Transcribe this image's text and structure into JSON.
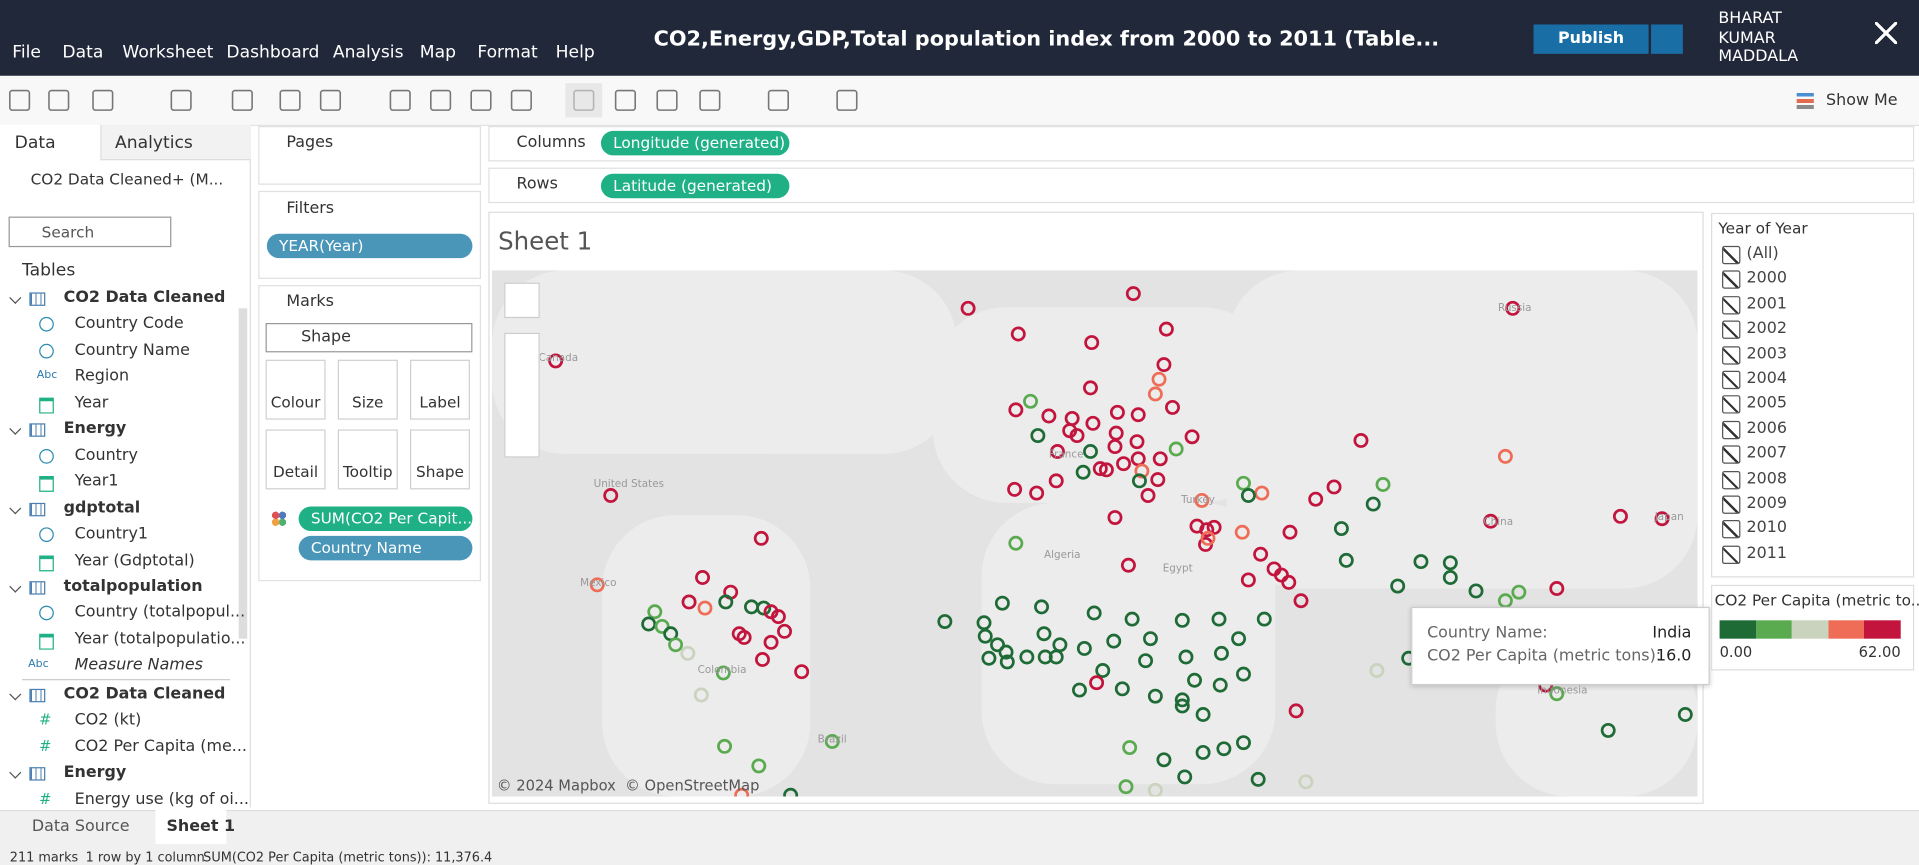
{
  "menu": [
    "File",
    "Data",
    "Worksheet",
    "Dashboard",
    "Analysis",
    "Map",
    "Format",
    "Help"
  ],
  "title": "CO2,Energy,GDP,Total population index from 2000 to 2011 (Table...",
  "publish": "Publish",
  "user": [
    "BHARAT",
    "KUMAR",
    "MADDALA"
  ],
  "show_me": "Show Me",
  "side_tabs": [
    "Data",
    "Analytics"
  ],
  "data_source": "CO2 Data Cleaned+ (M...",
  "search": "Search",
  "tables_heading": "Tables",
  "abc_icon": "Abc",
  "measure_icon": "#",
  "fields": [
    {
      "label": "CO2 Data Cleaned",
      "icon": "table"
    },
    {
      "label": "Country Code",
      "icon": "geo"
    },
    {
      "label": "Country Name",
      "icon": "geo"
    },
    {
      "label": "Region",
      "icon": "abc"
    },
    {
      "label": "Year",
      "icon": "date"
    },
    {
      "label": "Energy",
      "icon": "table"
    },
    {
      "label": "Country",
      "icon": "geo"
    },
    {
      "label": "Year1",
      "icon": "date"
    },
    {
      "label": "gdptotal",
      "icon": "table"
    },
    {
      "label": "Country1",
      "icon": "geo"
    },
    {
      "label": "Year (Gdptotal)",
      "icon": "date"
    },
    {
      "label": "totalpopulation",
      "icon": "table"
    },
    {
      "label": "Country (totalpopul...",
      "icon": "geo"
    },
    {
      "label": "Year (totalpopulatio...",
      "icon": "date"
    },
    {
      "label": "Measure Names",
      "icon": "abc"
    },
    {
      "label": "CO2 Data Cleaned",
      "icon": "table"
    },
    {
      "label": "CO2 (kt)",
      "icon": "measure"
    },
    {
      "label": "CO2 Per Capita (me...",
      "icon": "measure"
    },
    {
      "label": "Energy",
      "icon": "table"
    },
    {
      "label": "Energy use (kg of oi...",
      "icon": "measure"
    }
  ],
  "pages_title": "Pages",
  "filters_title": "Filters",
  "filter_pill": "YEAR(Year)",
  "marks_title": "Marks",
  "mark_type": "Shape",
  "mark_buttons": [
    "Colour",
    "Size",
    "Label",
    "Detail",
    "Tooltip",
    "Shape"
  ],
  "mark_pills": [
    "SUM(CO2 Per Capit...",
    "Country Name"
  ],
  "columns_label": "Columns",
  "columns_pill": "Longitude (generated)",
  "rows_label": "Rows",
  "rows_pill": "Latitude (generated)",
  "sheet_title": "Sheet 1",
  "map_labels": [
    "Canada",
    "United States",
    "Mexico",
    "Colombia",
    "Brazil",
    "France",
    "Algeria",
    "Egypt",
    "Turkey",
    "China",
    "Japan",
    "Russia",
    "Indonesia"
  ],
  "attribution": "© 2024 Mapbox  © OpenStreetMap",
  "tooltip": [
    [
      "Country Name:",
      "India"
    ],
    [
      "CO2 Per Capita (metric tons):",
      "16.0"
    ]
  ],
  "year_filter": {
    "title": "Year of Year",
    "items": [
      "(All)",
      "2000",
      "2001",
      "2002",
      "2003",
      "2004",
      "2005",
      "2006",
      "2007",
      "2008",
      "2009",
      "2010",
      "2011"
    ]
  },
  "legend": {
    "title": "CO2 Per Capita (metric to...",
    "min": "0.00",
    "max": "62.00",
    "colors": [
      "#1e6b36",
      "#5aaa4f",
      "#c9d3bd",
      "#ef6c56",
      "#c2143c"
    ]
  },
  "tabs": [
    "Data Source",
    "Sheet 1"
  ],
  "status": [
    "211 marks",
    "1 row by 1 column",
    "SUM(CO2 Per Capita (metric tons)): 11,376.4"
  ]
}
